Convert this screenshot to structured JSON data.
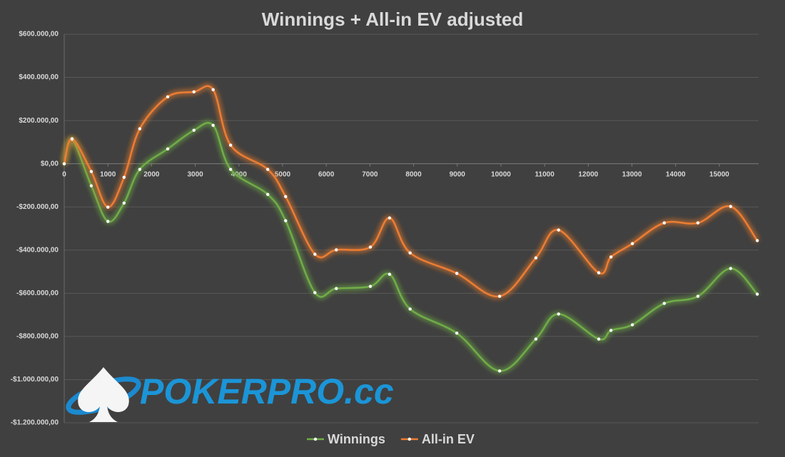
{
  "chart_data": {
    "type": "line",
    "title": "Winnings + All-in EV adjusted",
    "watermark": "POKERPRO.cc",
    "x": [
      0,
      180,
      620,
      1000,
      1370,
      1730,
      2370,
      2970,
      3410,
      3810,
      4660,
      5070,
      5740,
      6230,
      7010,
      7450,
      7920,
      8990,
      9970,
      10800,
      11320,
      12240,
      12520,
      13010,
      13740,
      14510,
      15260,
      15870
    ],
    "series": [
      {
        "name": "Winnings",
        "color": "#70ad47",
        "values": [
          0,
          112000,
          -102000,
          -267000,
          -182000,
          -26000,
          69000,
          155000,
          178000,
          -26000,
          -142000,
          -264000,
          -597000,
          -578000,
          -568000,
          -512000,
          -673000,
          -785000,
          -960000,
          -812000,
          -696000,
          -812000,
          -772000,
          -746000,
          -647000,
          -614000,
          -485000,
          -604000
        ]
      },
      {
        "name": "All-in EV",
        "color": "#ed7d31",
        "values": [
          0,
          116000,
          -36000,
          -201000,
          -63000,
          162000,
          310000,
          333000,
          343000,
          86000,
          -26000,
          -152000,
          -419000,
          -399000,
          -386000,
          -251000,
          -413000,
          -508000,
          -614000,
          -436000,
          -307000,
          -505000,
          -432000,
          -370000,
          -274000,
          -274000,
          -198000,
          -356000
        ]
      }
    ],
    "xlim": [
      0,
      15900
    ],
    "xticks": [
      0,
      1000,
      2000,
      3000,
      4000,
      5000,
      6000,
      7000,
      8000,
      9000,
      10000,
      11000,
      12000,
      13000,
      14000,
      15000
    ],
    "ylim": [
      -1200000,
      600000
    ],
    "yticks": [
      {
        "value": -1200000,
        "label": "-$1.200.000,00"
      },
      {
        "value": -1000000,
        "label": "-$1.000.000,00"
      },
      {
        "value": -800000,
        "label": "-$800.000,00"
      },
      {
        "value": -600000,
        "label": "-$600.000,00"
      },
      {
        "value": -400000,
        "label": "-$400.000,00"
      },
      {
        "value": -200000,
        "label": "-$200.000,00"
      },
      {
        "value": 0,
        "label": "$0,00"
      },
      {
        "value": 200000,
        "label": "$200.000,00"
      },
      {
        "value": 400000,
        "label": "$400.000,00"
      },
      {
        "value": 600000,
        "label": "$600.000,00"
      }
    ],
    "grid": true,
    "legend": "bottom"
  }
}
